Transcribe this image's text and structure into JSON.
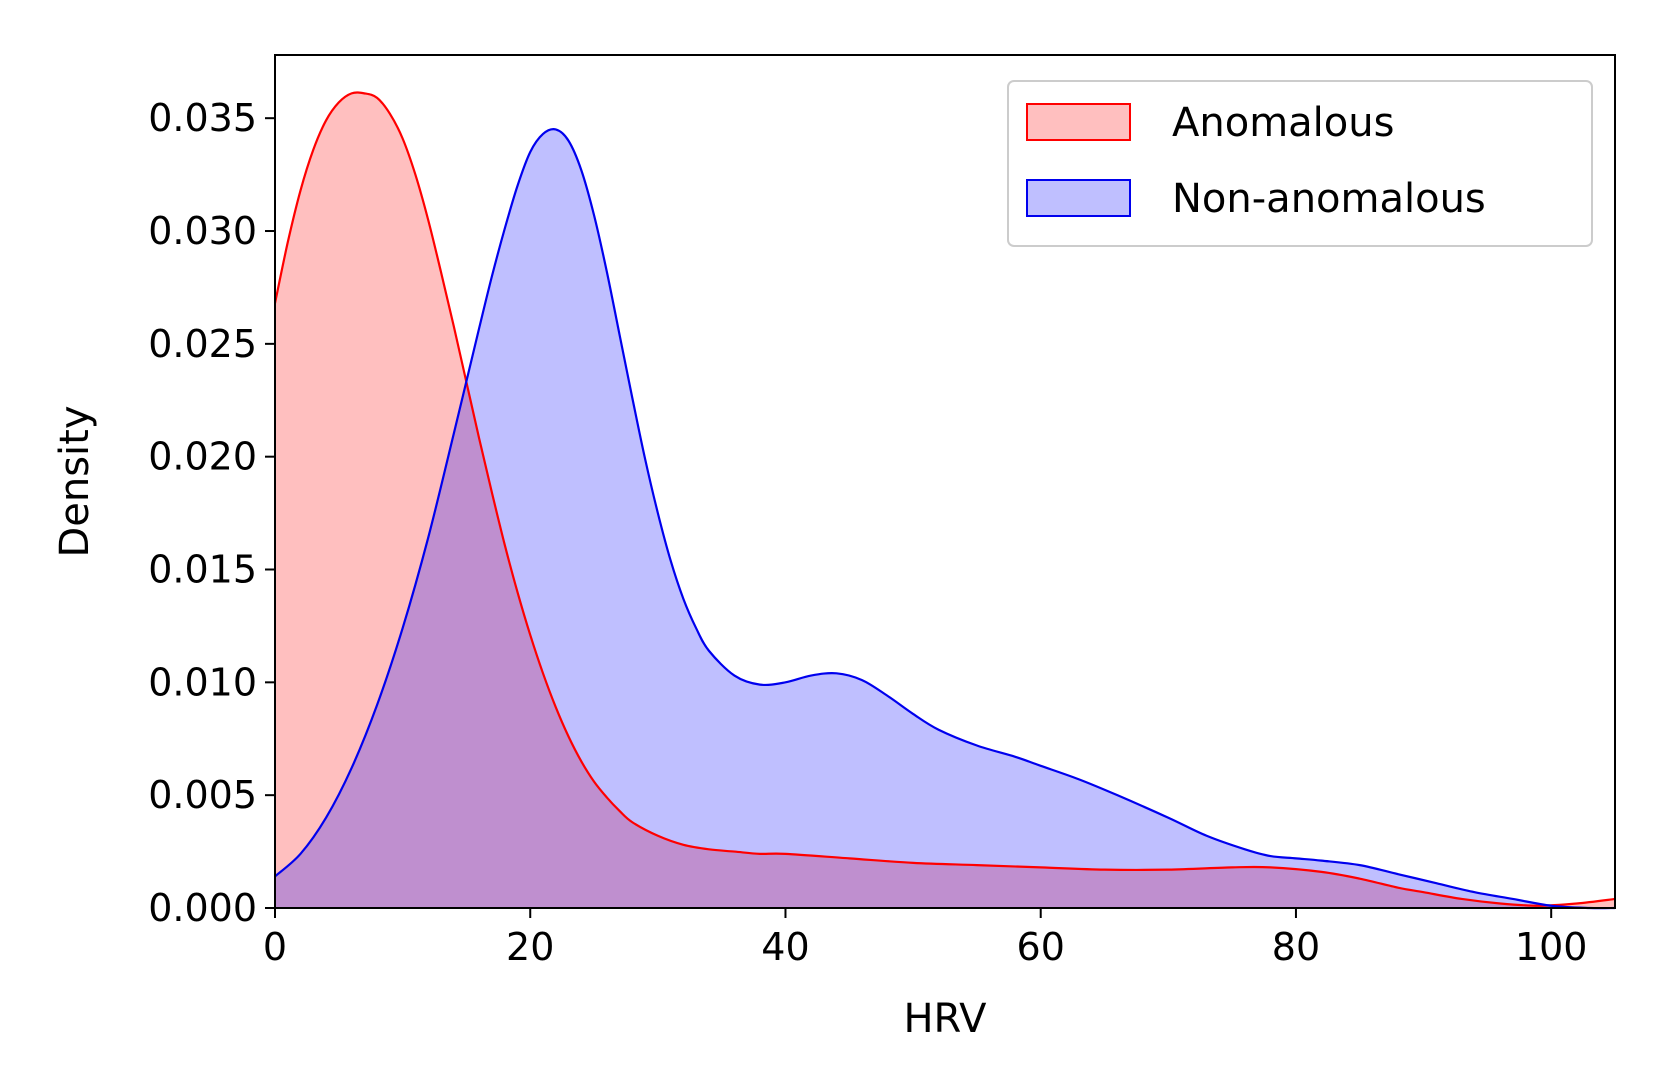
{
  "chart_data": {
    "type": "area",
    "title": "",
    "xlabel": "HRV",
    "ylabel": "Density",
    "xlim": [
      0,
      105
    ],
    "ylim": [
      0,
      0.0378
    ],
    "xticks": [
      0,
      20,
      40,
      60,
      80,
      100
    ],
    "xtick_labels": [
      "0",
      "20",
      "40",
      "60",
      "80",
      "100"
    ],
    "yticks": [
      0,
      0.005,
      0.01,
      0.015,
      0.02,
      0.025,
      0.03,
      0.035
    ],
    "ytick_labels": [
      "0.000",
      "0.005",
      "0.010",
      "0.015",
      "0.020",
      "0.025",
      "0.030",
      "0.035"
    ],
    "grid": false,
    "legend_position": "top-right",
    "series": [
      {
        "name": "Anomalous",
        "line_color": "#ff0000",
        "fill_color": "#ff0000",
        "fill_opacity": 0.25,
        "points": [
          [
            0,
            0.0268
          ],
          [
            1,
            0.0295
          ],
          [
            2,
            0.0318
          ],
          [
            3,
            0.0336
          ],
          [
            4,
            0.0349
          ],
          [
            5,
            0.0357
          ],
          [
            6,
            0.0361
          ],
          [
            7,
            0.0361
          ],
          [
            8,
            0.0359
          ],
          [
            9,
            0.0352
          ],
          [
            10,
            0.0341
          ],
          [
            11,
            0.0325
          ],
          [
            12,
            0.0305
          ],
          [
            13,
            0.0282
          ],
          [
            14,
            0.0258
          ],
          [
            15,
            0.0233
          ],
          [
            16,
            0.0208
          ],
          [
            17,
            0.0184
          ],
          [
            18,
            0.0161
          ],
          [
            19,
            0.014
          ],
          [
            20,
            0.0121
          ],
          [
            21,
            0.0104
          ],
          [
            22,
            0.0089
          ],
          [
            23,
            0.0076
          ],
          [
            24,
            0.0065
          ],
          [
            25,
            0.0056
          ],
          [
            26,
            0.0049
          ],
          [
            27,
            0.0043
          ],
          [
            28,
            0.0038
          ],
          [
            30,
            0.0032
          ],
          [
            32,
            0.0028
          ],
          [
            34,
            0.0026
          ],
          [
            36,
            0.0025
          ],
          [
            38,
            0.0024
          ],
          [
            40,
            0.0024
          ],
          [
            45,
            0.0022
          ],
          [
            50,
            0.002
          ],
          [
            55,
            0.0019
          ],
          [
            60,
            0.0018
          ],
          [
            65,
            0.0017
          ],
          [
            70,
            0.0017
          ],
          [
            75,
            0.0018
          ],
          [
            78,
            0.0018
          ],
          [
            82,
            0.0016
          ],
          [
            85,
            0.0013
          ],
          [
            88,
            0.0009
          ],
          [
            90,
            0.0007
          ],
          [
            93,
            0.0004
          ],
          [
            96,
            0.0002
          ],
          [
            99,
            0.0001
          ],
          [
            102,
            0.0002
          ],
          [
            105,
            0.0004
          ]
        ]
      },
      {
        "name": "Non-anomalous",
        "line_color": "#0000ee",
        "fill_color": "#0000ff",
        "fill_opacity": 0.25,
        "points": [
          [
            0,
            0.0014
          ],
          [
            2,
            0.0024
          ],
          [
            4,
            0.004
          ],
          [
            6,
            0.0062
          ],
          [
            8,
            0.009
          ],
          [
            10,
            0.0124
          ],
          [
            12,
            0.0164
          ],
          [
            14,
            0.021
          ],
          [
            16,
            0.0257
          ],
          [
            17,
            0.028
          ],
          [
            18,
            0.0301
          ],
          [
            19,
            0.032
          ],
          [
            20,
            0.0335
          ],
          [
            21,
            0.0343
          ],
          [
            22,
            0.0345
          ],
          [
            23,
            0.034
          ],
          [
            24,
            0.0327
          ],
          [
            25,
            0.0307
          ],
          [
            26,
            0.0282
          ],
          [
            27,
            0.0254
          ],
          [
            28,
            0.0226
          ],
          [
            29,
            0.0199
          ],
          [
            30,
            0.0175
          ],
          [
            31,
            0.0154
          ],
          [
            32,
            0.0137
          ],
          [
            33,
            0.0124
          ],
          [
            34,
            0.0114
          ],
          [
            36,
            0.0103
          ],
          [
            38,
            0.0099
          ],
          [
            40,
            0.01
          ],
          [
            42,
            0.0103
          ],
          [
            44,
            0.0104
          ],
          [
            46,
            0.0101
          ],
          [
            48,
            0.0094
          ],
          [
            50,
            0.0086
          ],
          [
            52,
            0.0079
          ],
          [
            55,
            0.0072
          ],
          [
            58,
            0.0067
          ],
          [
            60,
            0.0063
          ],
          [
            63,
            0.0057
          ],
          [
            66,
            0.005
          ],
          [
            70,
            0.004
          ],
          [
            73,
            0.0032
          ],
          [
            76,
            0.0026
          ],
          [
            78,
            0.0023
          ],
          [
            80,
            0.0022
          ],
          [
            82,
            0.0021
          ],
          [
            85,
            0.0019
          ],
          [
            88,
            0.0015
          ],
          [
            91,
            0.0011
          ],
          [
            94,
            0.0007
          ],
          [
            97,
            0.0004
          ],
          [
            100,
            0.0001
          ],
          [
            103,
            0.0
          ],
          [
            105,
            0.0
          ]
        ]
      }
    ]
  },
  "legend": {
    "items": [
      {
        "label": "Anomalous",
        "edge_color": "#ff0000",
        "fill_color": "#ffbfbf"
      },
      {
        "label": "Non-anomalous",
        "edge_color": "#0000ee",
        "fill_color": "#bfbfff"
      }
    ]
  }
}
